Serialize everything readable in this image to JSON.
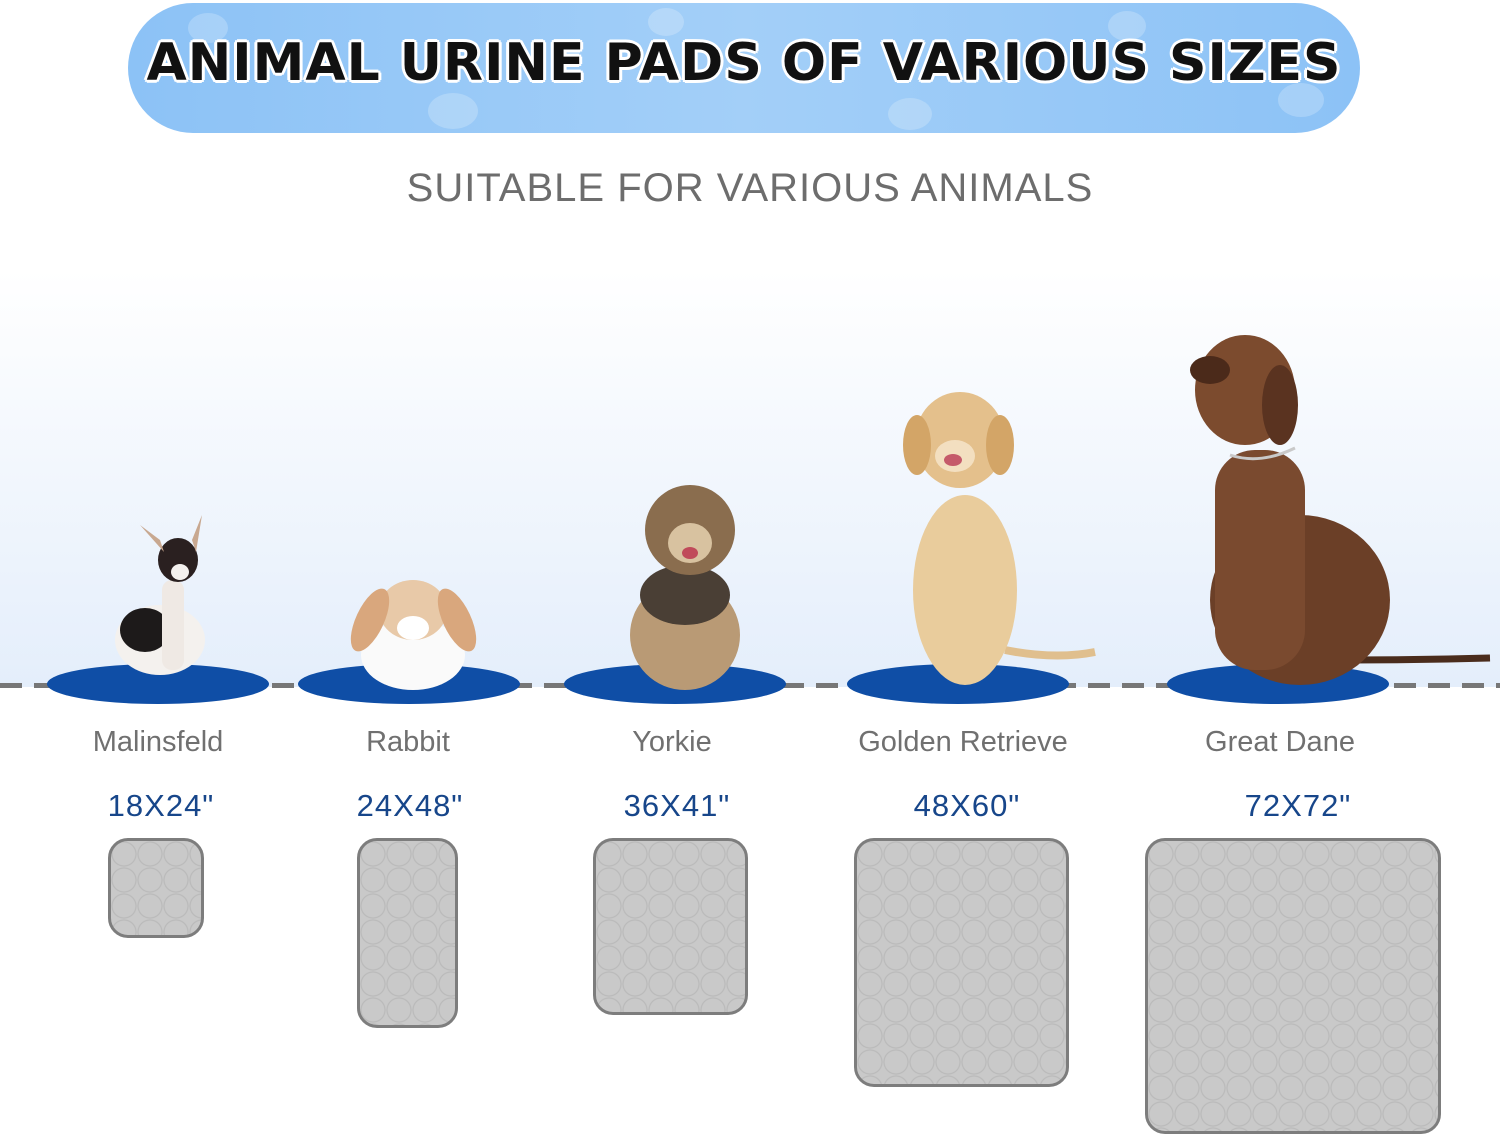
{
  "banner": {
    "title": "ANIMAL URINE PADS OF VARIOUS SIZES"
  },
  "subtitle": "SUITABLE FOR VARIOUS ANIMALS",
  "colors": {
    "banner": "#8cc2f6",
    "plate": "#0f4ea6",
    "size_text": "#17468a",
    "label_text": "#707070",
    "pad": "#c9c9c9"
  },
  "animals": [
    {
      "label": "Malinsfeld",
      "size": "18X24\"",
      "icon": "chihuahua-photo"
    },
    {
      "label": "Rabbit",
      "size": "24X48\"",
      "icon": "rabbit-photo"
    },
    {
      "label": "Yorkie",
      "size": "36X41\"",
      "icon": "yorkie-photo"
    },
    {
      "label": "Golden Retrieve",
      "size": "48X60\"",
      "icon": "golden-retriever-photo"
    },
    {
      "label": "Great Dane",
      "size": "72X72\"",
      "icon": "great-dane-photo"
    }
  ]
}
